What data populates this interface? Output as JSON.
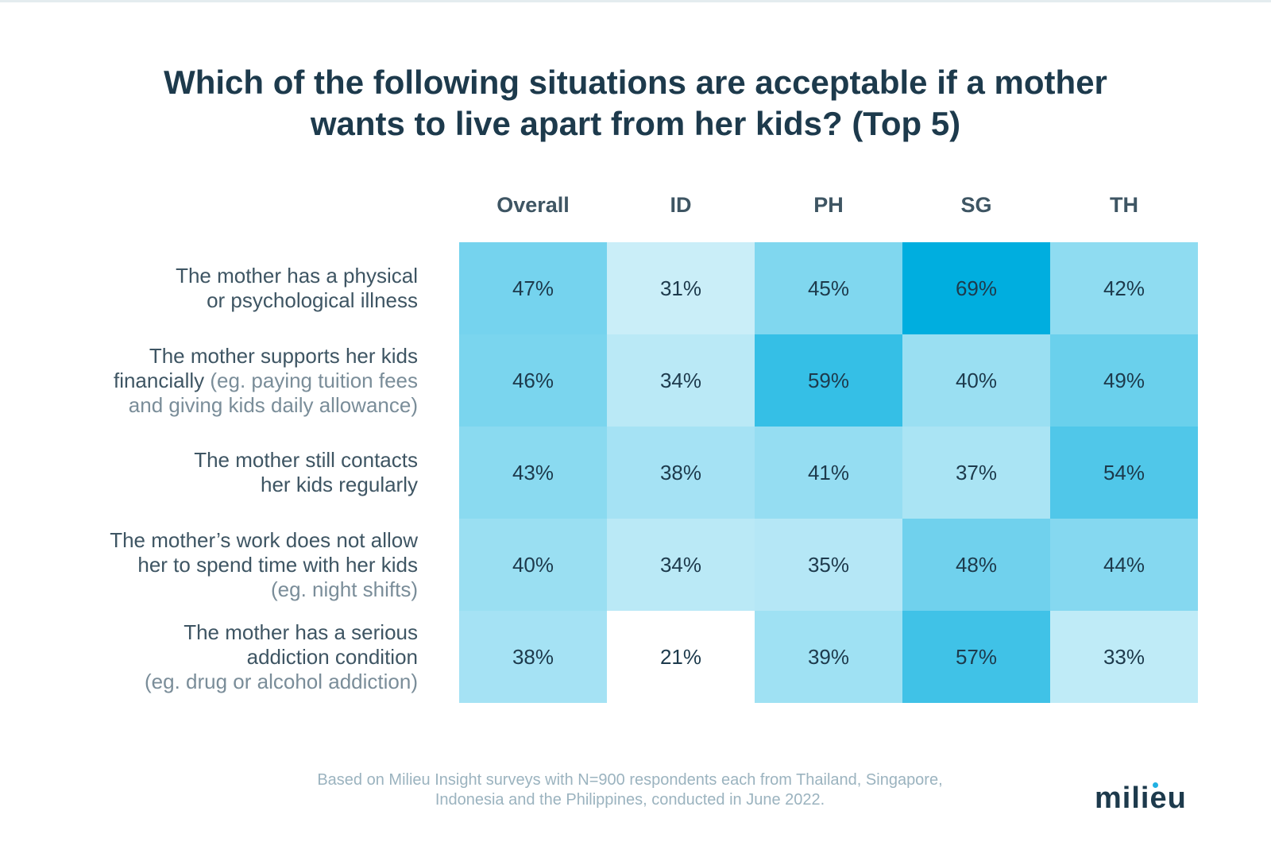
{
  "title": {
    "line1": "Which of the following situations are acceptable if a mother",
    "line2": "wants to live apart from her kids? (Top 5)"
  },
  "chart_data": {
    "type": "heatmap",
    "title": "Which of the following situations are acceptable if a mother wants to live apart from her kids? (Top 5)",
    "columns": [
      "Overall",
      "ID",
      "PH",
      "SG",
      "TH"
    ],
    "rows": [
      {
        "label_main": [
          "The mother has a physical",
          "or psychological illness"
        ],
        "label_sub": [],
        "values": [
          47,
          31,
          45,
          69,
          42
        ],
        "display": [
          "47%",
          "31%",
          "45%",
          "69%",
          "42%"
        ]
      },
      {
        "label_main": [
          "The mother supports her kids",
          "financially"
        ],
        "label_sub": [
          "(eg. paying tuition fees",
          "and giving kids daily allowance)"
        ],
        "values": [
          46,
          34,
          59,
          40,
          49
        ],
        "display": [
          "46%",
          "34%",
          "59%",
          "40%",
          "49%"
        ]
      },
      {
        "label_main": [
          "The mother still contacts",
          "her kids regularly"
        ],
        "label_sub": [],
        "values": [
          43,
          38,
          41,
          37,
          54
        ],
        "display": [
          "43%",
          "38%",
          "41%",
          "37%",
          "54%"
        ]
      },
      {
        "label_main": [
          "The mother’s work does not allow",
          "her to spend time with her kids"
        ],
        "label_sub": [
          "(eg. night shifts)"
        ],
        "values": [
          40,
          34,
          35,
          48,
          44
        ],
        "display": [
          "40%",
          "34%",
          "35%",
          "48%",
          "44%"
        ]
      },
      {
        "label_main": [
          "The mother has a serious",
          "addiction condition"
        ],
        "label_sub": [
          "(eg. drug or alcohol addiction)"
        ],
        "values": [
          38,
          21,
          39,
          57,
          33
        ],
        "display": [
          "38%",
          "21%",
          "39%",
          "57%",
          "33%"
        ]
      }
    ],
    "color_scale": {
      "low_value": 21,
      "high_value": 69,
      "low_color": "#ffffff",
      "high_color": "#00aedf"
    }
  },
  "footnote": {
    "line1": "Based on Milieu Insight surveys with N=900 respondents each from Thailand, Singapore,",
    "line2": "Indonesia and the Philippines, conducted in June 2022."
  },
  "logo": {
    "text": "milieu",
    "dot_color": "#21b0e2"
  }
}
